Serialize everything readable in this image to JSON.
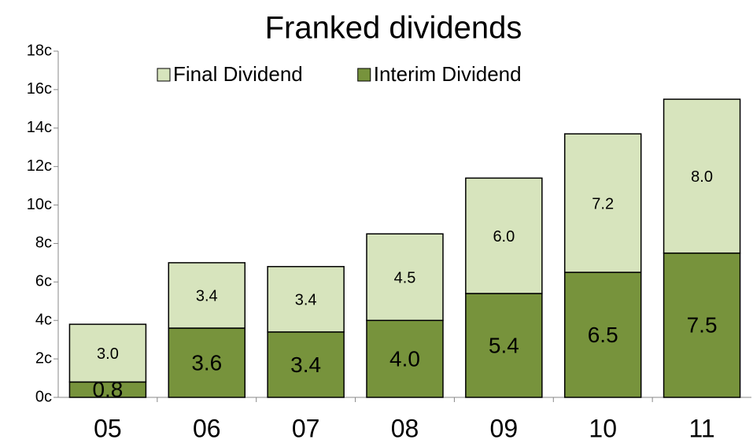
{
  "chart_data": {
    "type": "stacked_bar",
    "title": "Franked dividends",
    "categories": [
      "05",
      "06",
      "07",
      "08",
      "09",
      "10",
      "11"
    ],
    "series": [
      {
        "name": "Interim Dividend",
        "color": "#77933c",
        "values": [
          0.8,
          3.6,
          3.4,
          4.0,
          5.4,
          6.5,
          7.5
        ],
        "value_labels": [
          "0.8",
          "3.6",
          "3.4",
          "4.0",
          "5.4",
          "6.5",
          "7.5"
        ]
      },
      {
        "name": "Final Dividend",
        "color": "#d7e4bd",
        "values": [
          3.0,
          3.4,
          3.4,
          4.5,
          6.0,
          7.2,
          8.0
        ],
        "value_labels": [
          "3.0",
          "3.4",
          "3.4",
          "4.5",
          "6.0",
          "7.2",
          "8.0"
        ]
      }
    ],
    "ylim": [
      0,
      18
    ],
    "yticks": [
      {
        "value": 0,
        "label": "0c"
      },
      {
        "value": 2,
        "label": "2c"
      },
      {
        "value": 4,
        "label": "4c"
      },
      {
        "value": 6,
        "label": "6c"
      },
      {
        "value": 8,
        "label": "8c"
      },
      {
        "value": 10,
        "label": "10c"
      },
      {
        "value": 12,
        "label": "12c"
      },
      {
        "value": 14,
        "label": "14c"
      },
      {
        "value": 16,
        "label": "16c"
      },
      {
        "value": 18,
        "label": "18c"
      }
    ],
    "legend": "top"
  }
}
